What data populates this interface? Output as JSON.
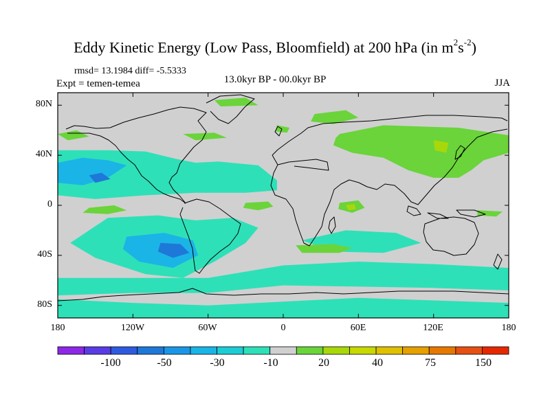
{
  "title_main": "Eddy Kinetic Energy (Low Pass, Bloomfield) at 200 hPa (in m",
  "title_sup1": "2",
  "title_mid": "s",
  "title_sup2": "-2",
  "title_end": ")",
  "stats": "rmsd= 13.1984 diff= -5.5333",
  "experiment": "Expt = temen-temea",
  "period": "13.0kyr BP - 00.0kyr BP",
  "season": "JJA",
  "colors": {
    "zero": "#d0d0d0",
    "neg_weak": "#2ee0b8",
    "neg_mid": "#1bb4e6",
    "neg_strong": "#1e78d8",
    "pos_weak": "#6ad43a",
    "pos_mid": "#a8d80a"
  },
  "colorbar": {
    "colors": [
      "#8c28e6",
      "#5a3ce6",
      "#2e5ae0",
      "#1e78d8",
      "#1b96e6",
      "#1bb4e6",
      "#1dccd4",
      "#2ee0b8",
      "#d0d0d0",
      "#6ad43a",
      "#a8d80a",
      "#c8d800",
      "#e0c000",
      "#e6a000",
      "#e67800",
      "#e65014",
      "#e62800"
    ],
    "labels": [
      "-100",
      "-50",
      "-30",
      "-10",
      "20",
      "40",
      "75",
      "150"
    ]
  },
  "axes": {
    "lat_labels": [
      "80N",
      "40N",
      "0",
      "40S",
      "80S"
    ],
    "lon_labels": [
      "180",
      "120W",
      "60W",
      "0",
      "60E",
      "120E",
      "180"
    ]
  },
  "map_data": {
    "type": "filled-contour",
    "projection": "cylindrical-equidistant",
    "lon_range": [
      -180,
      180
    ],
    "lat_range": [
      -90,
      90
    ],
    "field": "eddy kinetic energy difference",
    "features": [
      {
        "kind": "neg_weak",
        "points": [
          [
            -180,
            44
          ],
          [
            -140,
            44
          ],
          [
            -110,
            43
          ],
          [
            -85,
            37
          ],
          [
            -70,
            34
          ],
          [
            -52,
            35
          ],
          [
            -20,
            32
          ],
          [
            -5,
            20
          ],
          [
            -5,
            12
          ],
          [
            -30,
            10
          ],
          [
            -70,
            10
          ],
          [
            -110,
            8
          ],
          [
            -150,
            5
          ],
          [
            -180,
            8
          ]
        ]
      },
      {
        "kind": "neg_mid",
        "points": [
          [
            -180,
            34
          ],
          [
            -160,
            38
          ],
          [
            -140,
            36
          ],
          [
            -125,
            32
          ],
          [
            -140,
            22
          ],
          [
            -160,
            16
          ],
          [
            -180,
            18
          ]
        ]
      },
      {
        "kind": "neg_strong",
        "points": [
          [
            -155,
            24
          ],
          [
            -145,
            26
          ],
          [
            -138,
            21
          ],
          [
            -150,
            18
          ]
        ]
      },
      {
        "kind": "neg_weak",
        "points": [
          [
            -140,
            -10
          ],
          [
            -100,
            -8
          ],
          [
            -70,
            -12
          ],
          [
            -40,
            -10
          ],
          [
            -20,
            -18
          ],
          [
            -30,
            -30
          ],
          [
            -55,
            -45
          ],
          [
            -80,
            -58
          ],
          [
            -110,
            -55
          ],
          [
            -150,
            -42
          ],
          [
            -170,
            -30
          ]
        ]
      },
      {
        "kind": "neg_mid",
        "points": [
          [
            -125,
            -25
          ],
          [
            -95,
            -22
          ],
          [
            -72,
            -28
          ],
          [
            -68,
            -40
          ],
          [
            -88,
            -50
          ],
          [
            -115,
            -45
          ],
          [
            -128,
            -35
          ]
        ]
      },
      {
        "kind": "neg_strong",
        "points": [
          [
            -98,
            -30
          ],
          [
            -82,
            -31
          ],
          [
            -75,
            -38
          ],
          [
            -88,
            -42
          ],
          [
            -100,
            -37
          ]
        ]
      },
      {
        "kind": "neg_weak",
        "points": [
          [
            -180,
            -58
          ],
          [
            -120,
            -58
          ],
          [
            -60,
            -58
          ],
          [
            0,
            -48
          ],
          [
            60,
            -45
          ],
          [
            120,
            -47
          ],
          [
            180,
            -50
          ],
          [
            180,
            -68
          ],
          [
            120,
            -66
          ],
          [
            60,
            -65
          ],
          [
            0,
            -64
          ],
          [
            -60,
            -70
          ],
          [
            -120,
            -70
          ],
          [
            -180,
            -72
          ]
        ]
      },
      {
        "kind": "neg_weak",
        "points": [
          [
            15,
            -28
          ],
          [
            50,
            -20
          ],
          [
            90,
            -22
          ],
          [
            110,
            -30
          ],
          [
            80,
            -38
          ],
          [
            40,
            -37
          ]
        ]
      },
      {
        "kind": "neg_weak",
        "points": [
          [
            -180,
            -75
          ],
          [
            -120,
            -78
          ],
          [
            -60,
            -80
          ],
          [
            0,
            -77
          ],
          [
            60,
            -74
          ],
          [
            120,
            -76
          ],
          [
            180,
            -78
          ],
          [
            180,
            -90
          ],
          [
            -180,
            -90
          ]
        ]
      },
      {
        "kind": "pos_weak",
        "points": [
          [
            -155,
            -2
          ],
          [
            -135,
            0
          ],
          [
            -125,
            -4
          ],
          [
            -140,
            -7
          ],
          [
            -160,
            -6
          ]
        ]
      },
      {
        "kind": "pos_weak",
        "points": [
          [
            -30,
            2
          ],
          [
            -12,
            3
          ],
          [
            -8,
            -1
          ],
          [
            -20,
            -4
          ],
          [
            -32,
            -2
          ]
        ]
      },
      {
        "kind": "pos_weak",
        "points": [
          [
            45,
            2
          ],
          [
            60,
            4
          ],
          [
            65,
            -2
          ],
          [
            55,
            -6
          ],
          [
            44,
            -3
          ]
        ]
      },
      {
        "kind": "pos_mid",
        "points": [
          [
            50,
            0
          ],
          [
            57,
            1
          ],
          [
            58,
            -3
          ],
          [
            52,
            -4
          ]
        ]
      },
      {
        "kind": "pos_weak",
        "points": [
          [
            10,
            -32
          ],
          [
            40,
            -31
          ],
          [
            55,
            -34
          ],
          [
            45,
            -38
          ],
          [
            15,
            -38
          ]
        ]
      },
      {
        "kind": "pos_weak",
        "points": [
          [
            -180,
            57
          ],
          [
            -165,
            60
          ],
          [
            -155,
            55
          ],
          [
            -172,
            52
          ]
        ]
      },
      {
        "kind": "pos_weak",
        "points": [
          [
            -80,
            57
          ],
          [
            -55,
            58
          ],
          [
            -45,
            54
          ],
          [
            -70,
            52
          ]
        ]
      },
      {
        "kind": "pos_weak",
        "points": [
          [
            -5,
            64
          ],
          [
            5,
            62
          ],
          [
            3,
            58
          ],
          [
            -6,
            59
          ]
        ]
      },
      {
        "kind": "pos_weak",
        "points": [
          [
            25,
            73
          ],
          [
            50,
            76
          ],
          [
            60,
            70
          ],
          [
            40,
            65
          ],
          [
            22,
            67
          ]
        ]
      },
      {
        "kind": "pos_weak",
        "points": [
          [
            -55,
            84
          ],
          [
            -30,
            86
          ],
          [
            -20,
            80
          ],
          [
            -50,
            79
          ]
        ]
      },
      {
        "kind": "pos_weak",
        "points": [
          [
            45,
            57
          ],
          [
            80,
            64
          ],
          [
            110,
            63
          ],
          [
            140,
            62
          ],
          [
            180,
            56
          ],
          [
            180,
            42
          ],
          [
            160,
            36
          ],
          [
            150,
            28
          ],
          [
            140,
            22
          ],
          [
            120,
            22
          ],
          [
            100,
            28
          ],
          [
            80,
            38
          ],
          [
            55,
            42
          ],
          [
            40,
            48
          ],
          [
            42,
            54
          ]
        ]
      },
      {
        "kind": "pos_mid",
        "points": [
          [
            120,
            52
          ],
          [
            132,
            50
          ],
          [
            130,
            42
          ],
          [
            121,
            44
          ]
        ]
      },
      {
        "kind": "pos_weak",
        "points": [
          [
            155,
            -4
          ],
          [
            175,
            -5
          ],
          [
            170,
            -9
          ],
          [
            155,
            -8
          ]
        ]
      }
    ]
  }
}
